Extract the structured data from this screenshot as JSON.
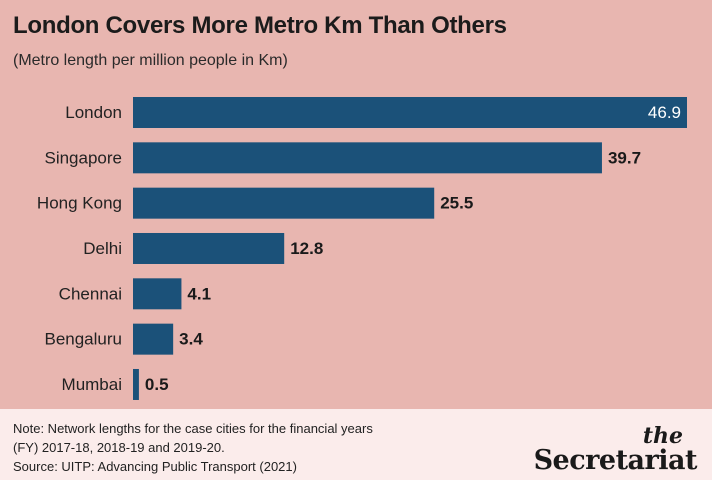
{
  "chart_data": {
    "type": "bar",
    "orientation": "horizontal",
    "title": "London Covers More Metro Km Than Others",
    "subtitle": "(Metro length per million people in Km)",
    "categories": [
      "London",
      "Singapore",
      "Hong Kong",
      "Delhi",
      "Chennai",
      "Bengaluru",
      "Mumbai"
    ],
    "values": [
      46.9,
      39.7,
      25.5,
      12.8,
      4.1,
      3.4,
      0.5
    ],
    "data_labels": [
      "46.9",
      "39.7",
      "25.5",
      "12.8",
      "4.1",
      "3.4",
      "0.5"
    ],
    "xlim": [
      0,
      46.9
    ],
    "grid": false,
    "bar_color": "#1b5179"
  },
  "footer": {
    "note_line1": "Note: Network lengths for the case cities for the financial years",
    "note_line2": "(FY) 2017-18, 2018-19 and 2019-20.",
    "source": "Source: UITP: Advancing Public Transport (2021)"
  },
  "logo": {
    "the": "the",
    "name": "Secretariat"
  },
  "colors": {
    "background": "#e8b6b0",
    "footer_background": "#fbeceb",
    "bar": "#1b5179"
  }
}
